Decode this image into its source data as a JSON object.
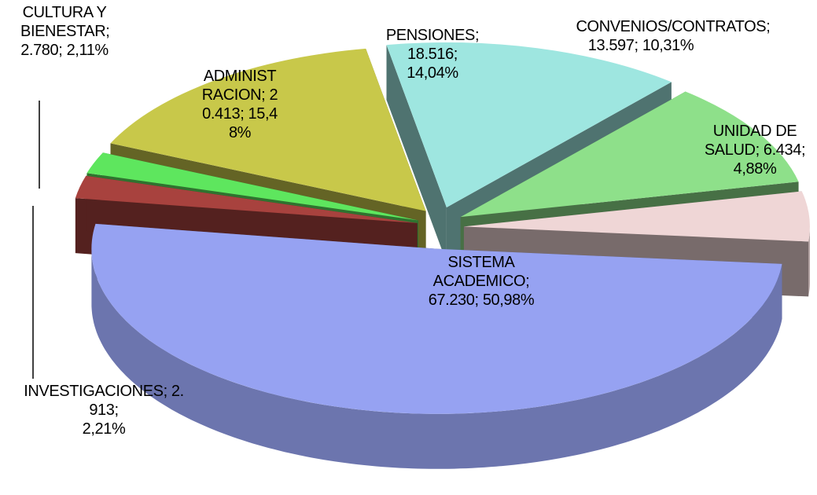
{
  "chart_data": {
    "type": "pie",
    "categories": [
      "PENSIONES",
      "CONVENIOS/CONTRATOS",
      "UNIDAD DE SALUD",
      "SISTEMA ACADEMICO",
      "INVESTIGACIONES",
      "CULTURA Y BIENESTAR",
      "ADMINISTRACION"
    ],
    "values": [
      18516,
      13597,
      6434,
      67230,
      2913,
      2780,
      20413
    ],
    "value_labels": [
      "18.516",
      "13.597",
      "6.434",
      "67.230",
      "2.913",
      "2.780",
      "20.413"
    ],
    "percent_labels": [
      "14,04%",
      "10,31%",
      "4,88%",
      "50,98%",
      "2,21%",
      "2,11%",
      "15,48%"
    ],
    "label_separator": "; ",
    "colors": [
      "#9ee6e0",
      "#8ee08a",
      "#efd6d6",
      "#96a2f2",
      "#a8423e",
      "#5ee65e",
      "#c8c84a"
    ],
    "exploded": true
  }
}
